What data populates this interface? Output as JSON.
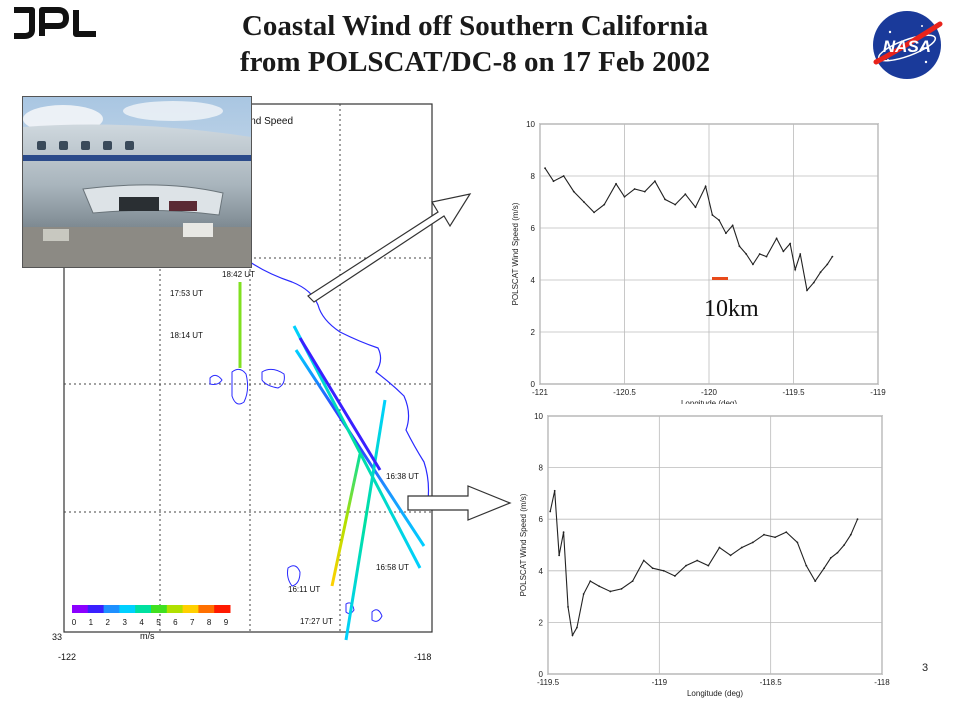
{
  "slide": {
    "title_line1": "Coastal Wind off Southern California",
    "title_line2": "from POLSCAT/DC-8 on 17 Feb 2002",
    "page_number": "3",
    "logo_left_text": "JPL",
    "logo_right_text": "NASA"
  },
  "map": {
    "title_fragment": "ind Speed",
    "x_ticks": [
      "-122",
      "-118"
    ],
    "y_tick": "33",
    "colorbar_ticks": [
      "0",
      "1",
      "2",
      "3",
      "4",
      "5",
      "6",
      "7",
      "8",
      "9"
    ],
    "colorbar_unit": "m/s",
    "colorbar_colors": [
      "#8b00ff",
      "#3a20ff",
      "#1e90ff",
      "#00d0ff",
      "#00e0a0",
      "#40e020",
      "#b0e000",
      "#ffd000",
      "#ff7000",
      "#ff1a00"
    ],
    "time_labels": [
      "18:42 UT",
      "17:53 UT",
      "18:14 UT",
      "16:38 UT",
      "16:58 UT",
      "16:11 UT",
      "17:27 UT"
    ]
  },
  "annotation": {
    "scale_label": "10km",
    "scale_color": "#e84a1a"
  },
  "chart_data": [
    {
      "type": "line",
      "title": "",
      "xlabel": "Longitude (deg)",
      "ylabel": "POLSCAT Wind Speed (m/s)",
      "xlim": [
        -121,
        -119
      ],
      "ylim": [
        0,
        10
      ],
      "x_ticks": [
        "-121",
        "-120.5",
        "-120",
        "-119.5",
        "-119"
      ],
      "y_ticks": [
        "0",
        "2",
        "4",
        "6",
        "8",
        "10"
      ],
      "grid": true,
      "x": [
        -120.97,
        -120.92,
        -120.86,
        -120.8,
        -120.74,
        -120.68,
        -120.62,
        -120.55,
        -120.5,
        -120.44,
        -120.38,
        -120.32,
        -120.26,
        -120.2,
        -120.14,
        -120.08,
        -120.02,
        -119.98,
        -119.94,
        -119.9,
        -119.86,
        -119.82,
        -119.78,
        -119.74,
        -119.7,
        -119.66,
        -119.6,
        -119.56,
        -119.52,
        -119.49,
        -119.46,
        -119.42,
        -119.38,
        -119.34,
        -119.3,
        -119.27
      ],
      "y": [
        8.3,
        7.8,
        8.0,
        7.4,
        7.0,
        6.6,
        6.9,
        7.7,
        7.2,
        7.5,
        7.4,
        7.8,
        7.1,
        6.9,
        7.3,
        6.8,
        7.6,
        6.5,
        6.3,
        5.8,
        6.1,
        5.3,
        5.0,
        4.6,
        5.0,
        4.9,
        5.6,
        5.1,
        5.4,
        4.4,
        5.0,
        3.6,
        3.9,
        4.3,
        4.6,
        4.9
      ]
    },
    {
      "type": "line",
      "title": "",
      "xlabel": "Longitude (deg)",
      "ylabel": "POLSCAT Wind Speed (m/s)",
      "xlim": [
        -119.5,
        -118
      ],
      "ylim": [
        0,
        10
      ],
      "x_ticks": [
        "-119.5",
        "-119",
        "-118.5",
        "-118"
      ],
      "y_ticks": [
        "0",
        "2",
        "4",
        "6",
        "8",
        "10"
      ],
      "grid": true,
      "x": [
        -119.49,
        -119.47,
        -119.45,
        -119.43,
        -119.41,
        -119.39,
        -119.37,
        -119.34,
        -119.31,
        -119.27,
        -119.22,
        -119.17,
        -119.12,
        -119.07,
        -119.03,
        -118.98,
        -118.93,
        -118.88,
        -118.83,
        -118.78,
        -118.73,
        -118.68,
        -118.63,
        -118.58,
        -118.53,
        -118.48,
        -118.43,
        -118.38,
        -118.34,
        -118.3,
        -118.26,
        -118.23,
        -118.2,
        -118.17,
        -118.14,
        -118.11
      ],
      "y": [
        6.3,
        7.1,
        4.6,
        5.5,
        2.6,
        1.5,
        1.8,
        3.1,
        3.6,
        3.4,
        3.2,
        3.3,
        3.6,
        4.4,
        4.1,
        4.0,
        3.8,
        4.2,
        4.4,
        4.2,
        4.9,
        4.6,
        4.9,
        5.1,
        5.4,
        5.3,
        5.5,
        5.1,
        4.2,
        3.6,
        4.1,
        4.5,
        4.7,
        5.0,
        5.4,
        6.0
      ]
    }
  ]
}
